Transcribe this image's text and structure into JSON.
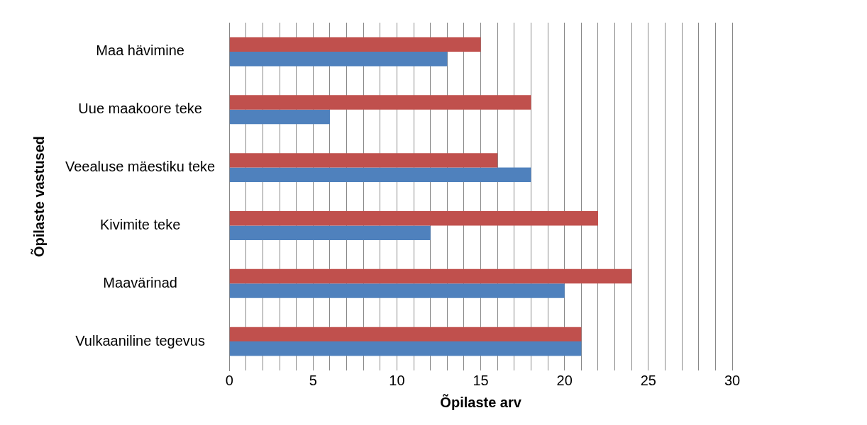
{
  "chart_data": {
    "type": "bar",
    "orientation": "horizontal",
    "xlabel": "Õpilaste arv",
    "ylabel": "Õpilaste vastused",
    "categories": [
      "Maa hävimine",
      "Uue maakoore teke",
      "Veealuse mäestiku teke",
      "Kivimite teke",
      "Maavärinad",
      "Vulkaaniline tegevus"
    ],
    "series": [
      {
        "color": "#c0504d",
        "values": [
          15,
          18,
          16,
          22,
          24,
          21
        ]
      },
      {
        "color": "#4f81bd",
        "values": [
          13,
          6,
          18,
          12,
          20,
          21
        ]
      }
    ],
    "xlim": [
      0,
      30
    ],
    "xticks": [
      0,
      {
        "value": 1,
        "label": null
      },
      {
        "value": 2,
        "label": null
      },
      {
        "value": 3,
        "label": null
      },
      {
        "value": 4,
        "label": null
      },
      5,
      {
        "value": 6,
        "label": null
      },
      {
        "value": 7,
        "label": null
      },
      {
        "value": 8,
        "label": null
      },
      {
        "value": 9,
        "label": null
      },
      10,
      {
        "value": 11,
        "label": null
      },
      {
        "value": 12,
        "label": null
      },
      {
        "value": 13,
        "label": null
      },
      {
        "value": 14,
        "label": null
      },
      15,
      {
        "value": 16,
        "label": null
      },
      {
        "value": 17,
        "label": null
      },
      {
        "value": 18,
        "label": null
      },
      {
        "value": 19,
        "label": null
      },
      20,
      {
        "value": 21,
        "label": null
      },
      {
        "value": 22,
        "label": null
      },
      {
        "value": 23,
        "label": null
      },
      {
        "value": 24,
        "label": null
      },
      25,
      {
        "value": 26,
        "label": null
      },
      {
        "value": 27,
        "label": null
      },
      {
        "value": 28,
        "label": null
      },
      {
        "value": 29,
        "label": null
      },
      30
    ],
    "grid": "x"
  }
}
